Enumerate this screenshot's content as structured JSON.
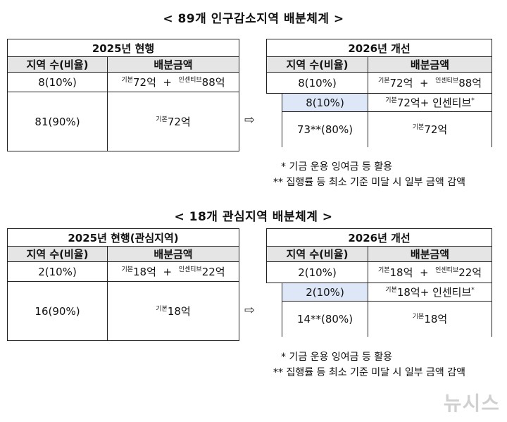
{
  "section1": {
    "title": "< 89개 인구감소지역 배분체계 >",
    "current": {
      "caption": "2025년 현행",
      "col1": "지역 수(비율)",
      "col2": "배분금액",
      "r1c1": "8(10%)",
      "r1_base_sup": "기본",
      "r1_base": "72억",
      "r1_plus": "+",
      "r1_inc_sup": "인센티브",
      "r1_inc": "88억",
      "r2c1": "81(90%)",
      "r2_base_sup": "기본",
      "r2_base": "72억"
    },
    "improved": {
      "caption": "2026년 개선",
      "col1": "지역 수(비율)",
      "col2": "배분금액",
      "r1c1": "8(10%)",
      "r1_base_sup": "기본",
      "r1_base": "72억",
      "r1_plus": "+",
      "r1_inc_sup": "인센티브",
      "r1_inc": "88억",
      "r2c1": "8(10%)",
      "r2_base_sup": "기본",
      "r2_base": "72억+",
      "r2_inc": "인센티브",
      "r2_star": "*",
      "r3c1": "73**(80%)",
      "r3_base_sup": "기본",
      "r3_base": "72억"
    },
    "note1": "* 기금 운용 잉여금 등 활용",
    "note2": "** 집행률 등 최소 기준 미달 시 일부 금액 감액"
  },
  "section2": {
    "title": "< 18개 관심지역 배분체계 >",
    "current": {
      "caption": "2025년 현행(관심지역)",
      "col1": "지역 수(비율)",
      "col2": "배분금액",
      "r1c1": "2(10%)",
      "r1_base_sup": "기본",
      "r1_base": "18억",
      "r1_plus": "+",
      "r1_inc_sup": "인센티브",
      "r1_inc": "22억",
      "r2c1": "16(90%)",
      "r2_base_sup": "기본",
      "r2_base": "18억"
    },
    "improved": {
      "caption": "2026년 개선",
      "col1": "지역 수(비율)",
      "col2": "배분금액",
      "r1c1": "2(10%)",
      "r1_base_sup": "기본",
      "r1_base": "18억",
      "r1_plus": "+",
      "r1_inc_sup": "인센티브",
      "r1_inc": "22억",
      "r2c1": "2(10%)",
      "r2_base_sup": "기본",
      "r2_base": "18억+",
      "r2_inc": "인센티브",
      "r2_star": "*",
      "r3c1": "14**(80%)",
      "r3_base_sup": "기본",
      "r3_base": "18억"
    },
    "note1": "* 기금 운용 잉여금 등 활용",
    "note2": "** 집행률 등 최소 기준 미달 시 일부 금액 감액"
  },
  "arrow_glyph": "⇨",
  "watermark": "뉴시스"
}
